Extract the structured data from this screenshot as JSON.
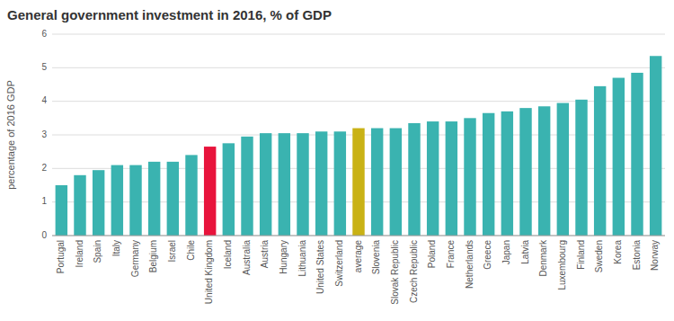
{
  "chart_data": {
    "type": "bar",
    "title": "General government investment in 2016, % of GDP",
    "ylabel": "percentage of 2016 GDP",
    "categories": [
      "Portugal",
      "Ireland",
      "Spain",
      "Italy",
      "Germany",
      "Belgium",
      "Israel",
      "Chile",
      "United Kingdom",
      "Iceland",
      "Australia",
      "Austria",
      "Hungary",
      "Lithuania",
      "United States",
      "Switzerland",
      "average",
      "Slovenia",
      "Slovak Republic",
      "Czech Republic",
      "Poland",
      "France",
      "Netherlands",
      "Greece",
      "Japan",
      "Latvia",
      "Denmark",
      "Luxembourg",
      "Finland",
      "Sweden",
      "Korea",
      "Estonia",
      "Norway"
    ],
    "values": [
      1.5,
      1.8,
      1.95,
      2.1,
      2.1,
      2.2,
      2.2,
      2.4,
      2.65,
      2.75,
      2.95,
      3.05,
      3.05,
      3.05,
      3.1,
      3.1,
      3.2,
      3.2,
      3.2,
      3.35,
      3.4,
      3.4,
      3.5,
      3.65,
      3.7,
      3.8,
      3.85,
      3.95,
      4.05,
      4.45,
      4.7,
      4.85,
      5.35
    ],
    "colors": [
      "#3ab3b0",
      "#3ab3b0",
      "#3ab3b0",
      "#3ab3b0",
      "#3ab3b0",
      "#3ab3b0",
      "#3ab3b0",
      "#3ab3b0",
      "#e8143c",
      "#3ab3b0",
      "#3ab3b0",
      "#3ab3b0",
      "#3ab3b0",
      "#3ab3b0",
      "#3ab3b0",
      "#3ab3b0",
      "#c9b215",
      "#3ab3b0",
      "#3ab3b0",
      "#3ab3b0",
      "#3ab3b0",
      "#3ab3b0",
      "#3ab3b0",
      "#3ab3b0",
      "#3ab3b0",
      "#3ab3b0",
      "#3ab3b0",
      "#3ab3b0",
      "#3ab3b0",
      "#3ab3b0",
      "#3ab3b0",
      "#3ab3b0",
      "#3ab3b0"
    ],
    "ylim": [
      0,
      6
    ],
    "yticks": [
      0,
      1,
      2,
      3,
      4,
      5,
      6
    ],
    "grid": true
  }
}
